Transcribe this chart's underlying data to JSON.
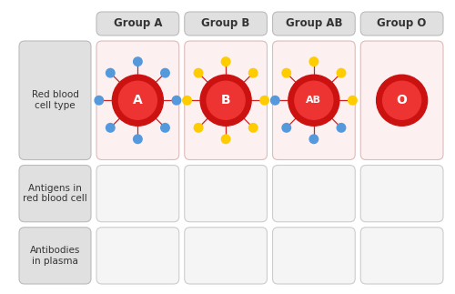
{
  "groups": [
    "Group A",
    "Group B",
    "Group AB",
    "Group O"
  ],
  "row_labels": [
    "Red blood\ncell type",
    "Antigens in\nred blood cell",
    "Antibodies\nin plasma"
  ],
  "bg_color": "#ffffff",
  "header_bg": "#e0e0e0",
  "cell_row1_bg": "#fdf0f0",
  "cell_other_bg": "#f5f5f5",
  "left_col_bg": "#e0e0e0",
  "cell_border": "#cccccc",
  "text_color": "#333333",
  "label_fontsize": 7.5,
  "group_fontsize": 8.5,
  "cell_label_fontsize_A": 10,
  "cell_label_fontsize_B": 10,
  "cell_label_fontsize_AB": 8,
  "cell_label_fontsize_O": 10,
  "blue_antigen": "#5599dd",
  "yellow_antigen": "#ffcc00",
  "red_outer": "#cc1111",
  "red_inner": "#ee3333",
  "spike_color": "#cc2222",
  "groups_info": [
    {
      "blue": true,
      "yellow": false,
      "label": "A"
    },
    {
      "blue": false,
      "yellow": true,
      "label": "B"
    },
    {
      "blue": true,
      "yellow": true,
      "label": "AB"
    },
    {
      "blue": false,
      "yellow": false,
      "label": "O"
    }
  ],
  "ab_blue_angles": [
    180,
    225,
    270,
    315
  ],
  "ab_yellow_angles": [
    0,
    45,
    90,
    135
  ],
  "a_angles": [
    0,
    45,
    90,
    135,
    180,
    225,
    270,
    315
  ],
  "b_angles": [
    0,
    45,
    90,
    135,
    180,
    225,
    270,
    315
  ]
}
